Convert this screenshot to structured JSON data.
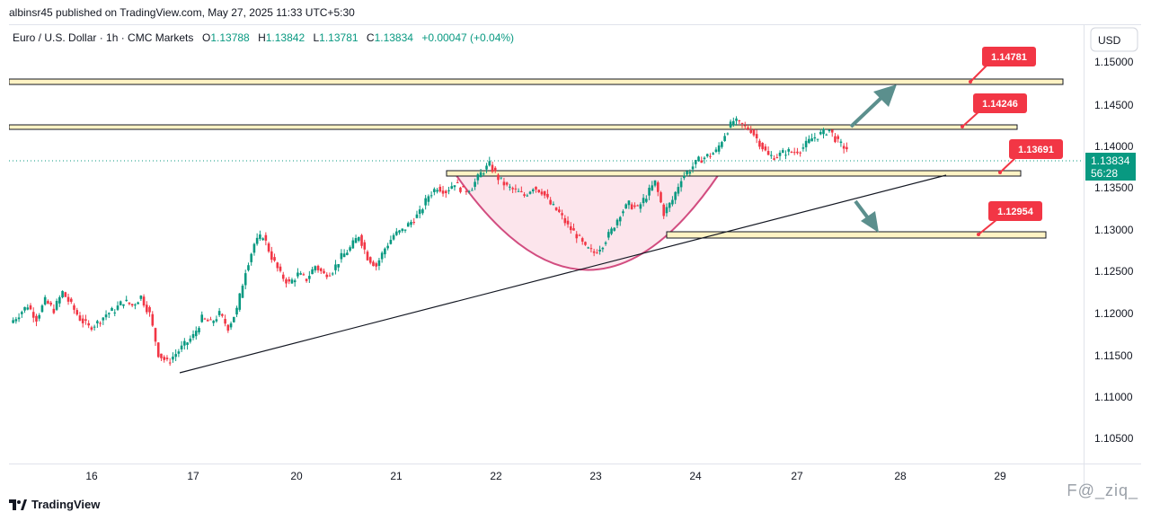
{
  "header": {
    "published": "albinsr45 published on TradingView.com, May 27, 2025 11:33 UTC+5:30"
  },
  "legend": {
    "symbol": "Euro / U.S. Dollar · 1h · CMC Markets",
    "o_label": "O",
    "o": "1.13788",
    "h_label": "H",
    "h": "1.13842",
    "l_label": "L",
    "l": "1.13781",
    "c_label": "C",
    "c": "1.13834",
    "change": "+0.00047 (+0.04%)"
  },
  "price_axis": {
    "currency": "USD"
  },
  "current_price": {
    "value": "1.13834",
    "countdown": "56:28",
    "color": "#089981"
  },
  "footer": {
    "brand": "TradingView",
    "watermark": "ᖴ@_ziq_"
  },
  "colors": {
    "up": "#089981",
    "down": "#f23645",
    "zone_fill": "#fff3c4",
    "cup_fill": "#fce4ec",
    "cup_line": "#d0447a",
    "arrow": "#5b8f8d",
    "label_bg": "#f23645"
  },
  "chart_data": {
    "type": "candlestick",
    "ylim": [
      1.1025,
      1.1525
    ],
    "yticks": [
      "1.15000",
      "1.14500",
      "1.14000",
      "1.13500",
      "1.13000",
      "1.12500",
      "1.12000",
      "1.11500",
      "1.11000",
      "1.10500"
    ],
    "xticks": [
      "16",
      "17",
      "20",
      "21",
      "22",
      "23",
      "24",
      "27",
      "28",
      "29"
    ],
    "close_path": [
      1.1185,
      1.1195,
      1.1205,
      1.119,
      1.121,
      1.12,
      1.122,
      1.1205,
      1.119,
      1.118,
      1.1185,
      1.1195,
      1.12,
      1.121,
      1.1205,
      1.1215,
      1.1195,
      1.115,
      1.114,
      1.115,
      1.116,
      1.117,
      1.119,
      1.1185,
      1.1195,
      1.118,
      1.12,
      1.1245,
      1.1275,
      1.1285,
      1.126,
      1.124,
      1.123,
      1.124,
      1.1235,
      1.125,
      1.124,
      1.1245,
      1.126,
      1.127,
      1.1285,
      1.126,
      1.125,
      1.127,
      1.1285,
      1.129,
      1.13,
      1.131,
      1.133,
      1.134,
      1.1335,
      1.1345,
      1.1335,
      1.134,
      1.1355,
      1.1365,
      1.135,
      1.134,
      1.1335,
      1.133,
      1.134,
      1.1335,
      1.132,
      1.131,
      1.1295,
      1.1285,
      1.127,
      1.1265,
      1.1275,
      1.129,
      1.131,
      1.132,
      1.1315,
      1.133,
      1.1345,
      1.131,
      1.1325,
      1.135,
      1.136,
      1.137,
      1.1375,
      1.138,
      1.14,
      1.1415,
      1.141,
      1.1405,
      1.139,
      1.1375,
      1.1375,
      1.138,
      1.138,
      1.1385,
      1.1395,
      1.14,
      1.1405,
      1.139,
      1.13834
    ],
    "annotations": {
      "levels": [
        {
          "label": "1.14781",
          "value": 1.14781
        },
        {
          "label": "1.14246",
          "value": 1.14246
        },
        {
          "label": "1.13691",
          "value": 1.13691
        },
        {
          "label": "1.12954",
          "value": 1.12954
        }
      ],
      "pattern": "cup",
      "trendline": "rising support",
      "arrows": [
        "up",
        "down"
      ]
    }
  }
}
